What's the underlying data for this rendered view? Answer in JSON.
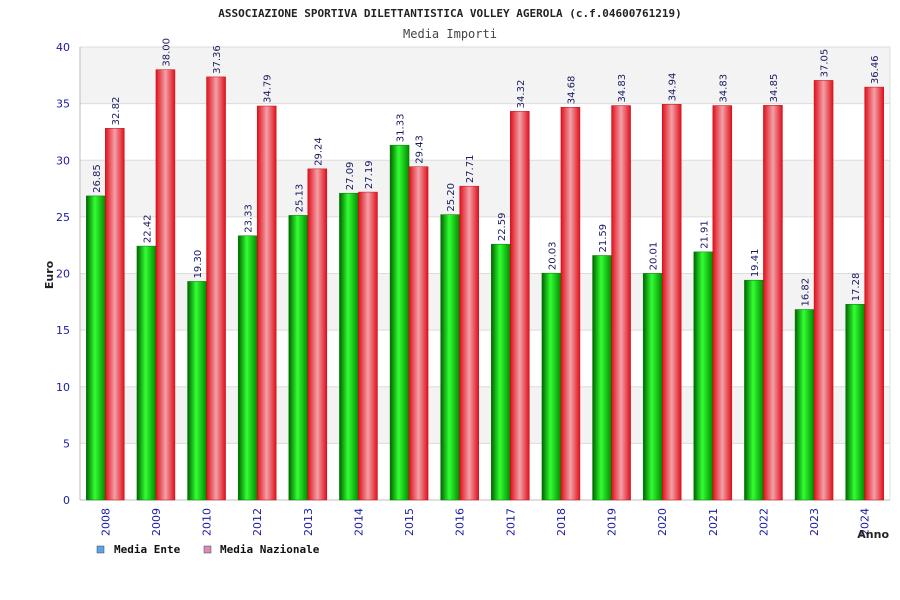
{
  "chart_data": {
    "type": "bar",
    "title": "ASSOCIAZIONE SPORTIVA DILETTANTISTICA VOLLEY AGEROLA (c.f.04600761219)",
    "subtitle": "Media Importi",
    "xlabel": "Anno",
    "ylabel": "Euro",
    "ylim": [
      0,
      40
    ],
    "yticks": [
      "0",
      "5",
      "10",
      "15",
      "20",
      "25",
      "30",
      "35",
      "40"
    ],
    "grid": true,
    "legend_position": "bottom-left",
    "categories": [
      "2008",
      "2009",
      "2010",
      "2012",
      "2013",
      "2014",
      "2015",
      "2016",
      "2017",
      "2018",
      "2019",
      "2020",
      "2021",
      "2022",
      "2023",
      "2024"
    ],
    "series": [
      {
        "name": "Media Ente",
        "color": "#00a000",
        "legend_color": "#5ba3e8",
        "values": [
          26.85,
          22.42,
          19.3,
          23.33,
          25.13,
          27.09,
          31.33,
          25.2,
          22.59,
          20.03,
          21.59,
          20.01,
          21.91,
          19.41,
          16.82,
          17.28
        ],
        "labels": [
          "26.85",
          "22.42",
          "19.30",
          "23.33",
          "25.13",
          "27.09",
          "31.33",
          "25.20",
          "22.59",
          "20.03",
          "21.59",
          "20.01",
          "21.91",
          "19.41",
          "16.82",
          "17.28"
        ]
      },
      {
        "name": "Media Nazionale",
        "color": "#e8101a",
        "legend_color": "#d98ab8",
        "values": [
          32.82,
          38.0,
          37.36,
          34.79,
          29.24,
          27.19,
          29.43,
          27.71,
          34.32,
          34.68,
          34.83,
          34.94,
          34.83,
          34.85,
          37.05,
          36.46
        ],
        "labels": [
          "32.82",
          "38.00",
          "37.36",
          "34.79",
          "29.24",
          "27.19",
          "29.43",
          "27.71",
          "34.32",
          "34.68",
          "34.83",
          "34.94",
          "34.83",
          "34.85",
          "37.05",
          "36.46"
        ]
      }
    ]
  }
}
